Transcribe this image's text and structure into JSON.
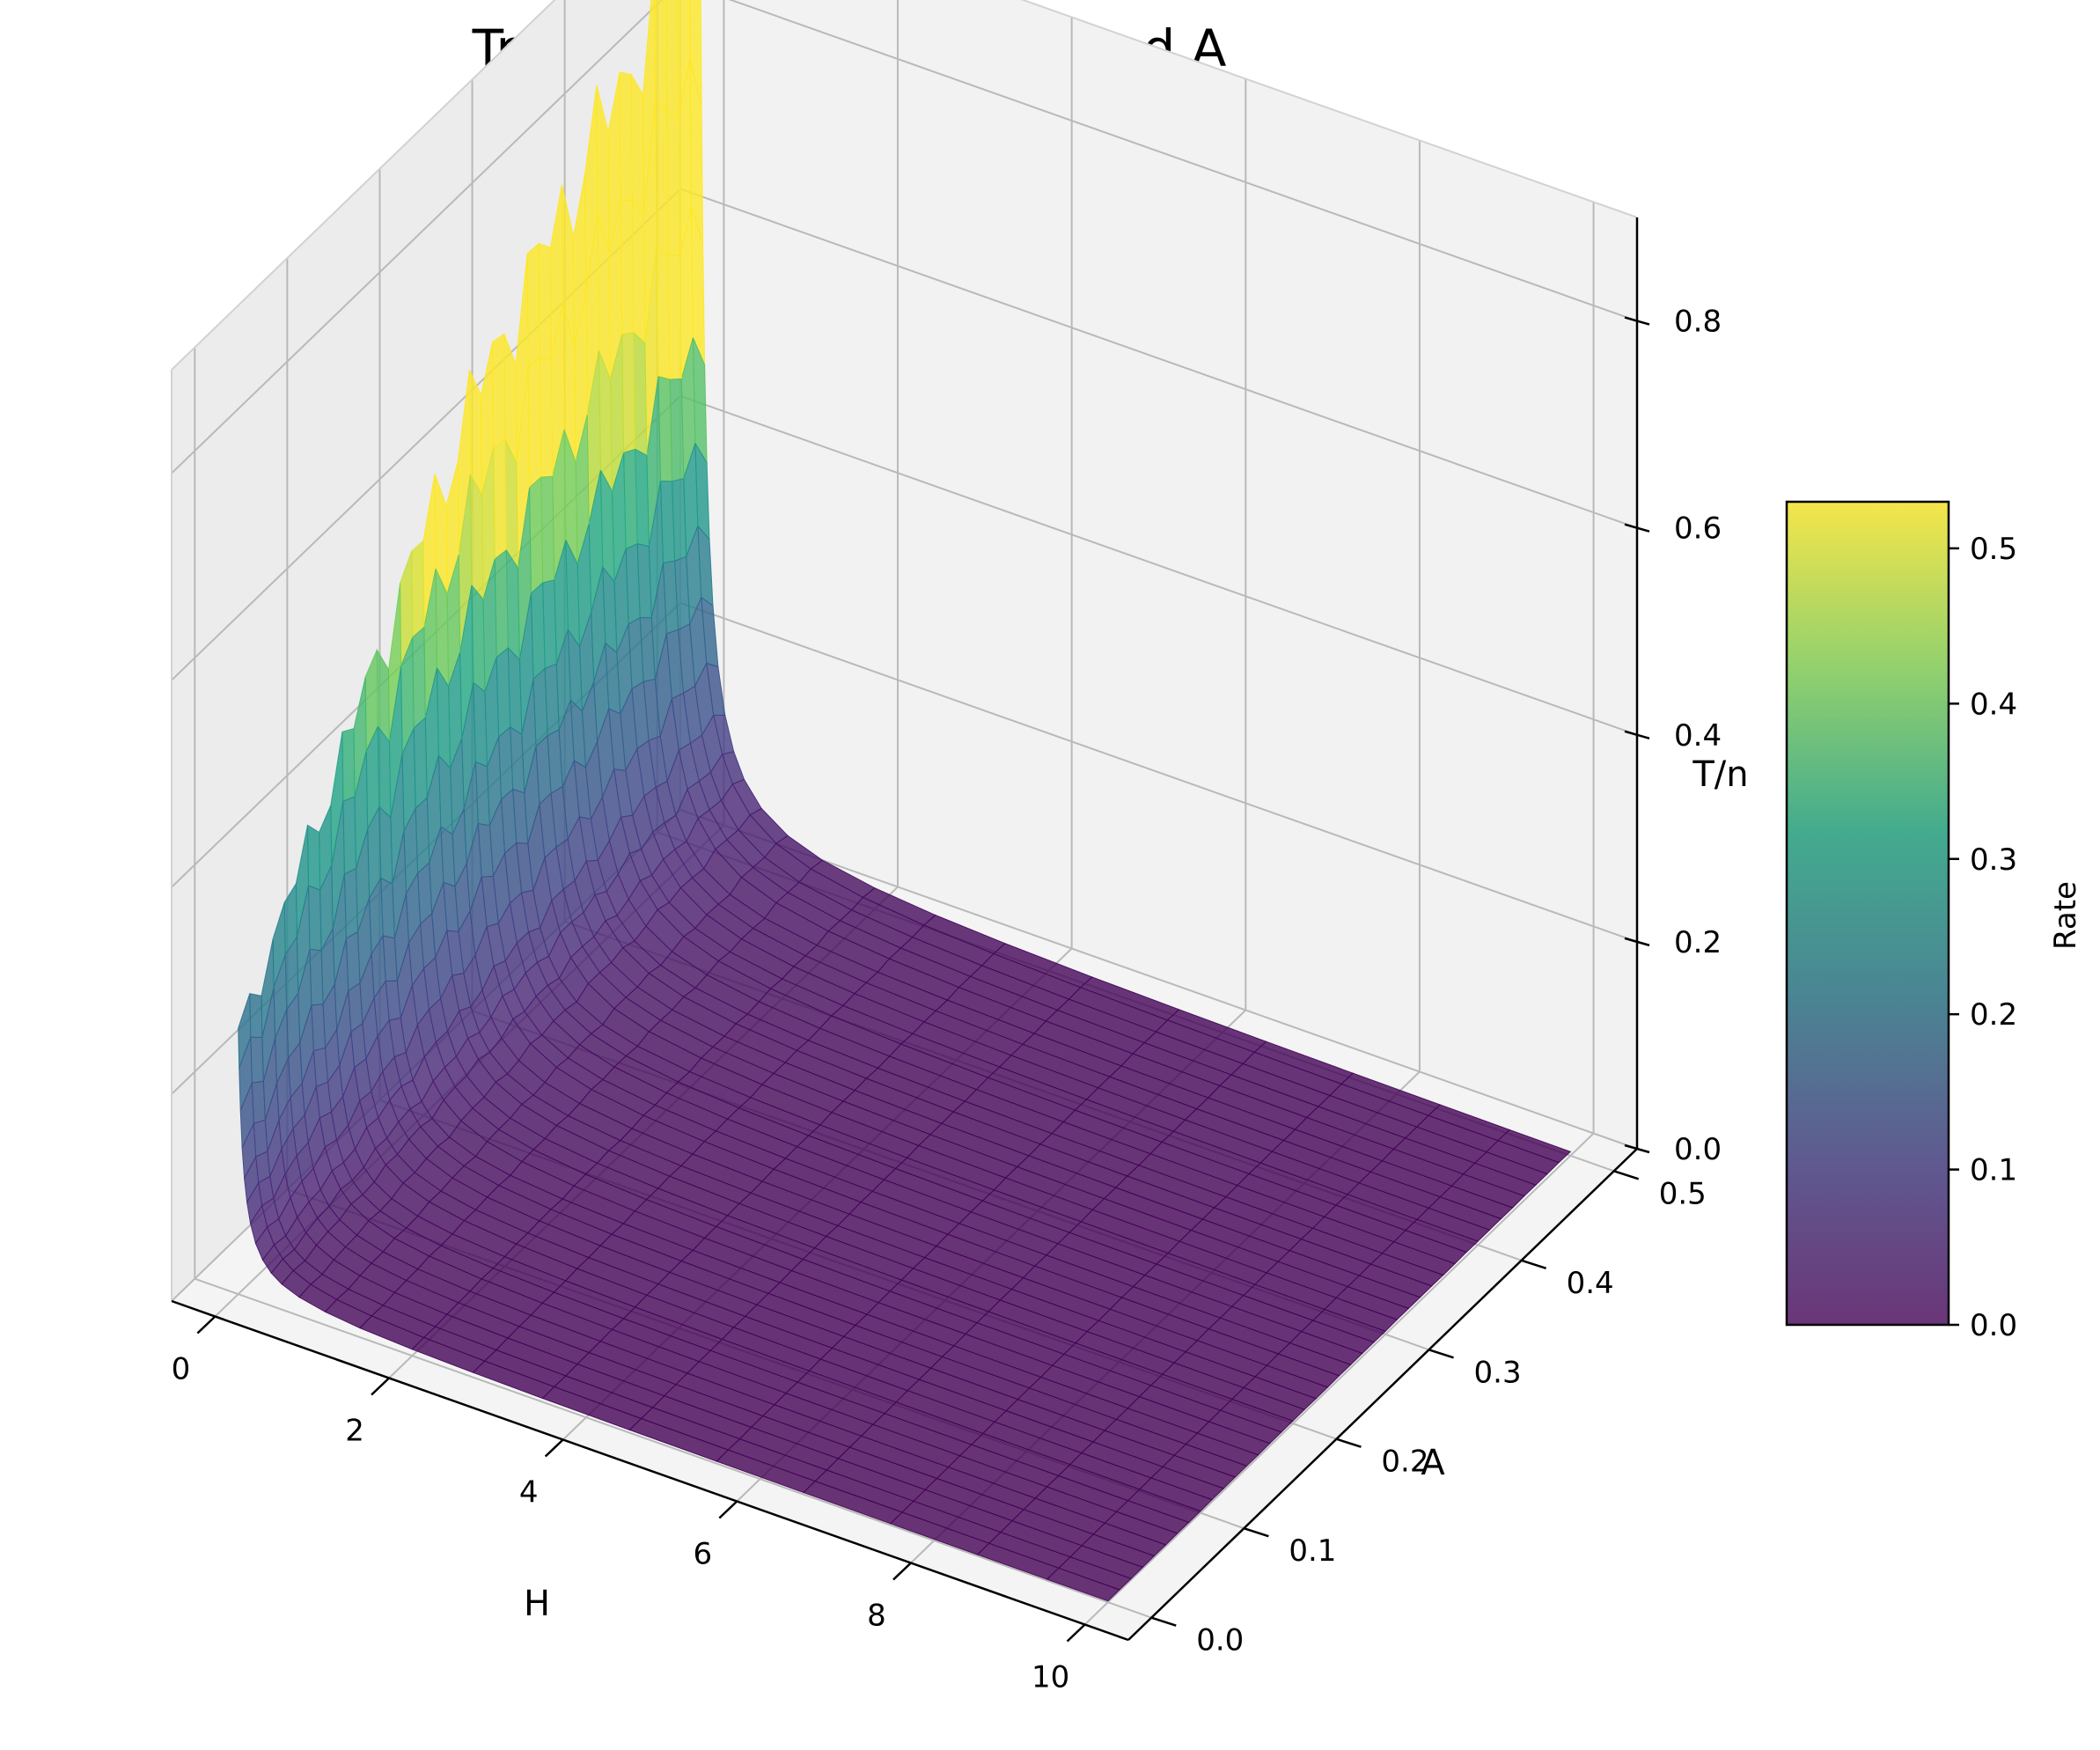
{
  "chart_data": {
    "type": "surface",
    "title": "Transmission Rate vs H and A",
    "xlabel": "H",
    "ylabel": "A",
    "zlabel": "T/n",
    "xlim": [
      -0.5,
      10.5
    ],
    "ylim": [
      -0.025,
      0.525
    ],
    "zlim": [
      0,
      0.9
    ],
    "x_ticks": [
      "0",
      "2",
      "4",
      "6",
      "8",
      "10"
    ],
    "y_ticks": [
      "0.0",
      "0.1",
      "0.2",
      "0.3",
      "0.4",
      "0.5"
    ],
    "z_ticks": [
      "0.0",
      "0.2",
      "0.4",
      "0.6",
      "0.8"
    ],
    "grid": true,
    "colormap": "viridis",
    "colorbar": {
      "label": "Rate",
      "range": [
        0,
        0.53
      ],
      "ticks": [
        "0.0",
        "0.1",
        "0.2",
        "0.3",
        "0.4",
        "0.5"
      ]
    },
    "surface": {
      "x_range": [
        0,
        10
      ],
      "y_range": [
        0,
        0.5
      ],
      "z_at_H0": [
        0.25,
        0.64,
        0.9
      ],
      "z_at_H10": 0.0,
      "shape": "rapid decay of T/n with H, nearly flat near 0 for H > 1; ridge rises with A",
      "alpha": 0.8
    }
  }
}
